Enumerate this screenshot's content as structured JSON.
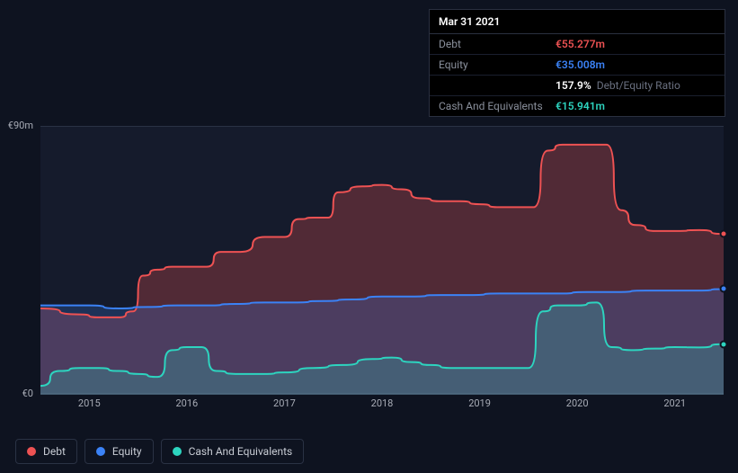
{
  "tooltip": {
    "date": "Mar 31 2021",
    "rows": [
      {
        "label": "Debt",
        "value": "€55.277m",
        "color": "#ee5253",
        "extra": ""
      },
      {
        "label": "Equity",
        "value": "€35.008m",
        "color": "#3b82f6",
        "extra": ""
      },
      {
        "label": "",
        "value": "157.9%",
        "color": "#ffffff",
        "extra": "Debt/Equity Ratio"
      },
      {
        "label": "Cash And Equivalents",
        "value": "€15.941m",
        "color": "#2dd4bf",
        "extra": ""
      }
    ]
  },
  "chart": {
    "type": "area",
    "background_color": "#151b2c",
    "page_bg": "#0e1320",
    "grid_color": "#2a3244",
    "y_axis": {
      "min": 0,
      "max": 90,
      "labels": [
        {
          "text": "€90m",
          "v": 90
        },
        {
          "text": "€0",
          "v": 0
        }
      ]
    },
    "x_axis": {
      "min": 2014.5,
      "max": 2021.5,
      "ticks": [
        2015,
        2016,
        2017,
        2018,
        2019,
        2020,
        2021
      ]
    },
    "series": [
      {
        "name": "Debt",
        "color": "#ee5253",
        "fill": "rgba(238,82,83,0.28)",
        "points": [
          [
            2014.5,
            29
          ],
          [
            2014.9,
            27
          ],
          [
            2015.1,
            26
          ],
          [
            2015.3,
            26
          ],
          [
            2015.45,
            28
          ],
          [
            2015.55,
            40
          ],
          [
            2015.7,
            42
          ],
          [
            2015.85,
            43
          ],
          [
            2016.0,
            43
          ],
          [
            2016.2,
            43
          ],
          [
            2016.35,
            48
          ],
          [
            2016.55,
            48
          ],
          [
            2016.8,
            53
          ],
          [
            2017.0,
            53
          ],
          [
            2017.15,
            59
          ],
          [
            2017.3,
            59.5
          ],
          [
            2017.45,
            59.5
          ],
          [
            2017.55,
            68
          ],
          [
            2017.8,
            70
          ],
          [
            2018.0,
            70.5
          ],
          [
            2018.2,
            69
          ],
          [
            2018.4,
            66
          ],
          [
            2018.6,
            65
          ],
          [
            2018.8,
            65
          ],
          [
            2019.0,
            64
          ],
          [
            2019.2,
            63
          ],
          [
            2019.4,
            63
          ],
          [
            2019.55,
            63
          ],
          [
            2019.7,
            82
          ],
          [
            2019.85,
            84
          ],
          [
            2020.05,
            84
          ],
          [
            2020.3,
            84
          ],
          [
            2020.45,
            62
          ],
          [
            2020.6,
            57
          ],
          [
            2020.8,
            55
          ],
          [
            2021.0,
            55
          ],
          [
            2021.25,
            55.3
          ],
          [
            2021.5,
            54
          ]
        ]
      },
      {
        "name": "Equity",
        "color": "#3b82f6",
        "fill": "rgba(59,130,246,0.22)",
        "points": [
          [
            2014.5,
            30
          ],
          [
            2014.8,
            30
          ],
          [
            2015.0,
            30
          ],
          [
            2015.3,
            29
          ],
          [
            2015.6,
            29.5
          ],
          [
            2015.9,
            30
          ],
          [
            2016.2,
            30
          ],
          [
            2016.5,
            30.5
          ],
          [
            2016.8,
            31
          ],
          [
            2017.1,
            31
          ],
          [
            2017.4,
            31.5
          ],
          [
            2017.7,
            32
          ],
          [
            2018.0,
            33
          ],
          [
            2018.3,
            33
          ],
          [
            2018.6,
            33.5
          ],
          [
            2018.9,
            33.5
          ],
          [
            2019.2,
            34
          ],
          [
            2019.5,
            34
          ],
          [
            2019.8,
            34
          ],
          [
            2020.1,
            34.5
          ],
          [
            2020.4,
            34.5
          ],
          [
            2020.7,
            35
          ],
          [
            2021.0,
            35
          ],
          [
            2021.25,
            35
          ],
          [
            2021.5,
            35.5
          ]
        ]
      },
      {
        "name": "Cash And Equivalents",
        "color": "#2dd4bf",
        "fill": "rgba(45,212,191,0.22)",
        "points": [
          [
            2014.5,
            3
          ],
          [
            2014.7,
            8
          ],
          [
            2014.9,
            9
          ],
          [
            2015.1,
            9
          ],
          [
            2015.3,
            8
          ],
          [
            2015.5,
            7
          ],
          [
            2015.7,
            6
          ],
          [
            2015.85,
            15
          ],
          [
            2016.0,
            16
          ],
          [
            2016.15,
            16
          ],
          [
            2016.3,
            8
          ],
          [
            2016.5,
            7
          ],
          [
            2016.8,
            7
          ],
          [
            2017.0,
            7.5
          ],
          [
            2017.3,
            9
          ],
          [
            2017.6,
            10
          ],
          [
            2017.9,
            12
          ],
          [
            2018.1,
            12.5
          ],
          [
            2018.3,
            11
          ],
          [
            2018.5,
            10
          ],
          [
            2018.7,
            9
          ],
          [
            2018.9,
            9
          ],
          [
            2019.1,
            9
          ],
          [
            2019.3,
            9
          ],
          [
            2019.5,
            9
          ],
          [
            2019.65,
            28
          ],
          [
            2019.8,
            30
          ],
          [
            2020.0,
            30
          ],
          [
            2020.2,
            31
          ],
          [
            2020.35,
            16
          ],
          [
            2020.55,
            15
          ],
          [
            2020.8,
            15.5
          ],
          [
            2021.0,
            16
          ],
          [
            2021.25,
            15.9
          ],
          [
            2021.5,
            17
          ]
        ]
      }
    ],
    "legend": [
      {
        "label": "Debt",
        "color": "#ee5253"
      },
      {
        "label": "Equity",
        "color": "#3b82f6"
      },
      {
        "label": "Cash And Equivalents",
        "color": "#2dd4bf"
      }
    ]
  }
}
